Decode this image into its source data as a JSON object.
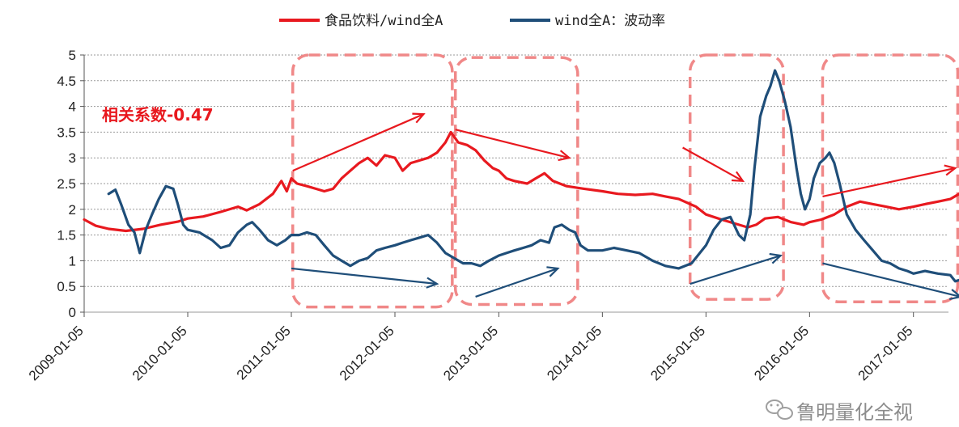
{
  "chart_data": {
    "type": "line",
    "title": "",
    "xlabel": "",
    "ylabel": "",
    "ylim": [
      0,
      5
    ],
    "yticks": [
      "0",
      "0.5",
      "1",
      "1.5",
      "2",
      "2.5",
      "3",
      "3.5",
      "4",
      "4.5",
      "5"
    ],
    "xticks": [
      "2009-01-05",
      "2010-01-05",
      "2011-01-05",
      "2012-01-05",
      "2013-01-05",
      "2014-01-05",
      "2015-01-05",
      "2016-01-05",
      "2017-01-05"
    ],
    "grid": "horizontal dashed",
    "legend_position": "top",
    "annotation": "相关系数-0.47",
    "series": [
      {
        "name": "食品饮料/wind全A",
        "color": "#e8191f",
        "points": [
          [
            "2009-01-05",
            1.8
          ],
          [
            "2009-02-15",
            1.68
          ],
          [
            "2009-04-01",
            1.62
          ],
          [
            "2009-06-01",
            1.58
          ],
          [
            "2009-08-01",
            1.62
          ],
          [
            "2009-10-01",
            1.7
          ],
          [
            "2009-12-01",
            1.76
          ],
          [
            "2010-01-05",
            1.82
          ],
          [
            "2010-03-01",
            1.86
          ],
          [
            "2010-05-01",
            1.95
          ],
          [
            "2010-07-01",
            2.05
          ],
          [
            "2010-08-01",
            1.98
          ],
          [
            "2010-09-15",
            2.1
          ],
          [
            "2010-11-01",
            2.3
          ],
          [
            "2010-12-01",
            2.55
          ],
          [
            "2010-12-20",
            2.35
          ],
          [
            "2011-01-05",
            2.6
          ],
          [
            "2011-01-25",
            2.5
          ],
          [
            "2011-03-01",
            2.45
          ],
          [
            "2011-04-01",
            2.4
          ],
          [
            "2011-05-01",
            2.35
          ],
          [
            "2011-06-01",
            2.4
          ],
          [
            "2011-07-01",
            2.6
          ],
          [
            "2011-08-01",
            2.75
          ],
          [
            "2011-09-01",
            2.9
          ],
          [
            "2011-10-01",
            3.0
          ],
          [
            "2011-11-01",
            2.85
          ],
          [
            "2011-12-01",
            3.05
          ],
          [
            "2012-01-05",
            3.0
          ],
          [
            "2012-02-01",
            2.75
          ],
          [
            "2012-03-01",
            2.9
          ],
          [
            "2012-04-01",
            2.95
          ],
          [
            "2012-05-01",
            3.0
          ],
          [
            "2012-06-01",
            3.1
          ],
          [
            "2012-07-01",
            3.3
          ],
          [
            "2012-07-20",
            3.5
          ],
          [
            "2012-08-15",
            3.3
          ],
          [
            "2012-09-15",
            3.25
          ],
          [
            "2012-10-15",
            3.15
          ],
          [
            "2012-11-15",
            2.95
          ],
          [
            "2012-12-15",
            2.8
          ],
          [
            "2013-01-05",
            2.75
          ],
          [
            "2013-02-01",
            2.6
          ],
          [
            "2013-03-01",
            2.55
          ],
          [
            "2013-04-15",
            2.5
          ],
          [
            "2013-05-15",
            2.6
          ],
          [
            "2013-06-15",
            2.7
          ],
          [
            "2013-07-15",
            2.55
          ],
          [
            "2013-09-01",
            2.45
          ],
          [
            "2013-11-01",
            2.4
          ],
          [
            "2014-01-05",
            2.35
          ],
          [
            "2014-03-01",
            2.3
          ],
          [
            "2014-05-01",
            2.28
          ],
          [
            "2014-07-01",
            2.3
          ],
          [
            "2014-08-15",
            2.25
          ],
          [
            "2014-10-01",
            2.2
          ],
          [
            "2014-12-01",
            2.05
          ],
          [
            "2015-01-05",
            1.9
          ],
          [
            "2015-03-01",
            1.8
          ],
          [
            "2015-05-01",
            1.7
          ],
          [
            "2015-06-01",
            1.65
          ],
          [
            "2015-07-01",
            1.7
          ],
          [
            "2015-08-01",
            1.82
          ],
          [
            "2015-09-15",
            1.85
          ],
          [
            "2015-11-01",
            1.75
          ],
          [
            "2015-12-15",
            1.7
          ],
          [
            "2016-01-05",
            1.75
          ],
          [
            "2016-02-15",
            1.8
          ],
          [
            "2016-04-01",
            1.9
          ],
          [
            "2016-05-15",
            2.05
          ],
          [
            "2016-07-01",
            2.15
          ],
          [
            "2016-08-15",
            2.1
          ],
          [
            "2016-10-01",
            2.05
          ],
          [
            "2016-11-15",
            2.0
          ],
          [
            "2017-01-05",
            2.05
          ],
          [
            "2017-02-15",
            2.1
          ],
          [
            "2017-04-01",
            2.15
          ],
          [
            "2017-05-15",
            2.2
          ],
          [
            "2017-07-01",
            2.35
          ]
        ]
      },
      {
        "name": "wind全A：波动率",
        "color": "#1f4e79",
        "points": [
          [
            "2009-04-01",
            2.3
          ],
          [
            "2009-04-25",
            2.38
          ],
          [
            "2009-05-15",
            2.1
          ],
          [
            "2009-06-10",
            1.7
          ],
          [
            "2009-07-01",
            1.55
          ],
          [
            "2009-07-20",
            1.15
          ],
          [
            "2009-08-10",
            1.6
          ],
          [
            "2009-09-01",
            1.9
          ],
          [
            "2009-09-25",
            2.2
          ],
          [
            "2009-10-20",
            2.45
          ],
          [
            "2009-11-15",
            2.4
          ],
          [
            "2009-12-01",
            2.1
          ],
          [
            "2009-12-20",
            1.7
          ],
          [
            "2010-01-05",
            1.6
          ],
          [
            "2010-02-15",
            1.55
          ],
          [
            "2010-04-01",
            1.4
          ],
          [
            "2010-05-01",
            1.25
          ],
          [
            "2010-06-01",
            1.3
          ],
          [
            "2010-07-01",
            1.55
          ],
          [
            "2010-08-01",
            1.7
          ],
          [
            "2010-08-20",
            1.75
          ],
          [
            "2010-09-15",
            1.6
          ],
          [
            "2010-10-15",
            1.4
          ],
          [
            "2010-11-15",
            1.3
          ],
          [
            "2010-12-15",
            1.4
          ],
          [
            "2011-01-05",
            1.5
          ],
          [
            "2011-02-01",
            1.5
          ],
          [
            "2011-03-01",
            1.55
          ],
          [
            "2011-04-01",
            1.5
          ],
          [
            "2011-05-01",
            1.3
          ],
          [
            "2011-06-01",
            1.1
          ],
          [
            "2011-07-01",
            1.0
          ],
          [
            "2011-08-01",
            0.9
          ],
          [
            "2011-09-01",
            1.0
          ],
          [
            "2011-10-01",
            1.05
          ],
          [
            "2011-11-01",
            1.2
          ],
          [
            "2011-12-01",
            1.25
          ],
          [
            "2012-01-05",
            1.3
          ],
          [
            "2012-02-01",
            1.35
          ],
          [
            "2012-03-01",
            1.4
          ],
          [
            "2012-04-01",
            1.45
          ],
          [
            "2012-05-01",
            1.5
          ],
          [
            "2012-06-01",
            1.35
          ],
          [
            "2012-07-01",
            1.15
          ],
          [
            "2012-08-01",
            1.05
          ],
          [
            "2012-09-01",
            0.95
          ],
          [
            "2012-10-01",
            0.95
          ],
          [
            "2012-11-01",
            0.9
          ],
          [
            "2012-12-01",
            1.0
          ],
          [
            "2013-01-05",
            1.1
          ],
          [
            "2013-02-01",
            1.15
          ],
          [
            "2013-03-01",
            1.2
          ],
          [
            "2013-04-01",
            1.25
          ],
          [
            "2013-05-01",
            1.3
          ],
          [
            "2013-06-01",
            1.4
          ],
          [
            "2013-07-01",
            1.35
          ],
          [
            "2013-07-20",
            1.65
          ],
          [
            "2013-08-15",
            1.7
          ],
          [
            "2013-09-10",
            1.6
          ],
          [
            "2013-10-01",
            1.55
          ],
          [
            "2013-10-20",
            1.3
          ],
          [
            "2013-11-15",
            1.2
          ],
          [
            "2014-01-05",
            1.2
          ],
          [
            "2014-02-15",
            1.25
          ],
          [
            "2014-04-01",
            1.2
          ],
          [
            "2014-05-15",
            1.15
          ],
          [
            "2014-07-01",
            1.0
          ],
          [
            "2014-08-15",
            0.9
          ],
          [
            "2014-10-01",
            0.85
          ],
          [
            "2014-11-15",
            0.95
          ],
          [
            "2015-01-05",
            1.3
          ],
          [
            "2015-02-01",
            1.6
          ],
          [
            "2015-03-01",
            1.8
          ],
          [
            "2015-04-01",
            1.85
          ],
          [
            "2015-05-01",
            1.5
          ],
          [
            "2015-05-20",
            1.4
          ],
          [
            "2015-06-10",
            1.9
          ],
          [
            "2015-06-25",
            2.8
          ],
          [
            "2015-07-15",
            3.8
          ],
          [
            "2015-08-05",
            4.2
          ],
          [
            "2015-08-20",
            4.4
          ],
          [
            "2015-09-05",
            4.7
          ],
          [
            "2015-09-20",
            4.5
          ],
          [
            "2015-10-10",
            4.1
          ],
          [
            "2015-10-30",
            3.6
          ],
          [
            "2015-11-20",
            2.8
          ],
          [
            "2015-12-05",
            2.3
          ],
          [
            "2015-12-20",
            2.0
          ],
          [
            "2016-01-05",
            2.2
          ],
          [
            "2016-01-20",
            2.6
          ],
          [
            "2016-02-10",
            2.9
          ],
          [
            "2016-03-01",
            3.0
          ],
          [
            "2016-03-15",
            3.1
          ],
          [
            "2016-04-01",
            2.9
          ],
          [
            "2016-04-20",
            2.5
          ],
          [
            "2016-05-15",
            1.9
          ],
          [
            "2016-06-15",
            1.6
          ],
          [
            "2016-07-15",
            1.4
          ],
          [
            "2016-08-15",
            1.2
          ],
          [
            "2016-09-15",
            1.0
          ],
          [
            "2016-10-15",
            0.95
          ],
          [
            "2016-11-15",
            0.85
          ],
          [
            "2016-12-15",
            0.8
          ],
          [
            "2017-01-05",
            0.75
          ],
          [
            "2017-02-15",
            0.8
          ],
          [
            "2017-04-01",
            0.75
          ],
          [
            "2017-05-15",
            0.72
          ],
          [
            "2017-06-01",
            0.6
          ],
          [
            "2017-07-01",
            0.65
          ]
        ]
      }
    ]
  },
  "watermark": "鲁明量化全视"
}
